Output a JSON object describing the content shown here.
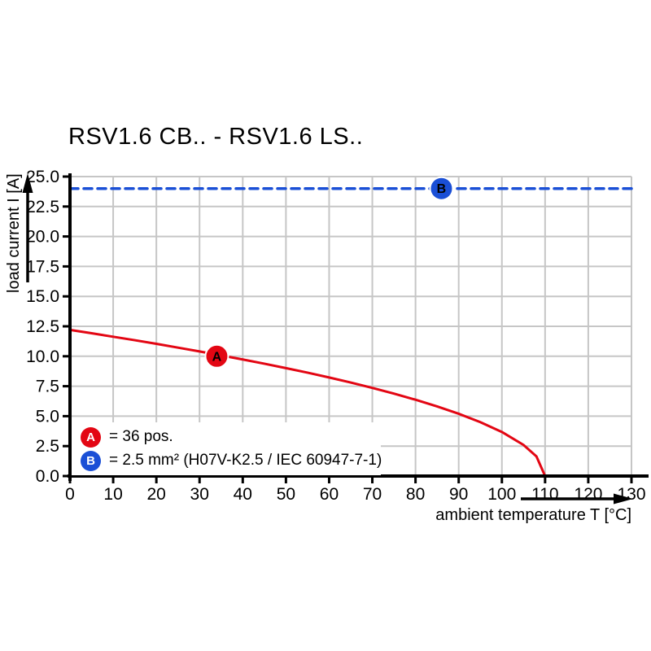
{
  "title": "RSV1.6 CB.. - RSV1.6 LS..",
  "axes": {
    "x_label": "ambient temperature T [°C]",
    "y_label": "load current I [A]",
    "x_ticks": [
      0,
      10,
      20,
      30,
      40,
      50,
      60,
      70,
      80,
      90,
      100,
      110,
      120,
      130
    ],
    "y_ticks": [
      0,
      2.5,
      5,
      7.5,
      10,
      12.5,
      15,
      17.5,
      20,
      22.5,
      25
    ]
  },
  "legend": {
    "items": [
      {
        "marker": "A",
        "color": "#e30613",
        "text": "= 36 pos."
      },
      {
        "marker": "B",
        "color": "#1a4fd6",
        "text": "= 2.5 mm² (H07V-K2.5 / IEC 60947-7-1)"
      }
    ]
  },
  "colors": {
    "curve_a": "#e30613",
    "line_b": "#1a4fd6",
    "grid": "#c6c6c6",
    "axis": "#000000",
    "background": "#ffffff"
  },
  "chart_data": {
    "type": "line",
    "title": "RSV1.6 CB.. - RSV1.6 LS..",
    "xlabel": "ambient temperature T [°C]",
    "ylabel": "load current I [A]",
    "xlim": [
      0,
      130
    ],
    "ylim": [
      0,
      25
    ],
    "x_tick_step": 10,
    "y_tick_step": 2.5,
    "grid": true,
    "legend_position": "lower-left",
    "series": [
      {
        "name": "A",
        "description": "36 pos.",
        "color": "#e30613",
        "style": "solid",
        "points": [
          [
            0,
            12.2
          ],
          [
            5,
            11.92
          ],
          [
            10,
            11.63
          ],
          [
            15,
            11.34
          ],
          [
            20,
            11.04
          ],
          [
            25,
            10.72
          ],
          [
            30,
            10.4
          ],
          [
            35,
            10.07
          ],
          [
            40,
            9.73
          ],
          [
            45,
            9.38
          ],
          [
            50,
            9.01
          ],
          [
            55,
            8.63
          ],
          [
            60,
            8.23
          ],
          [
            65,
            7.81
          ],
          [
            70,
            7.36
          ],
          [
            75,
            6.88
          ],
          [
            80,
            6.37
          ],
          [
            85,
            5.81
          ],
          [
            90,
            5.2
          ],
          [
            95,
            4.5
          ],
          [
            100,
            3.68
          ],
          [
            105,
            2.6
          ],
          [
            108,
            1.64
          ],
          [
            110,
            0
          ]
        ],
        "marker": {
          "label": "A",
          "x": 34,
          "y": 10
        }
      },
      {
        "name": "B",
        "description": "2.5 mm² (H07V-K2.5 / IEC 60947-7-1)",
        "color": "#1a4fd6",
        "style": "dashed",
        "points": [
          [
            0,
            24
          ],
          [
            130,
            24
          ]
        ],
        "marker": {
          "label": "B",
          "x": 86,
          "y": 24
        }
      }
    ]
  }
}
